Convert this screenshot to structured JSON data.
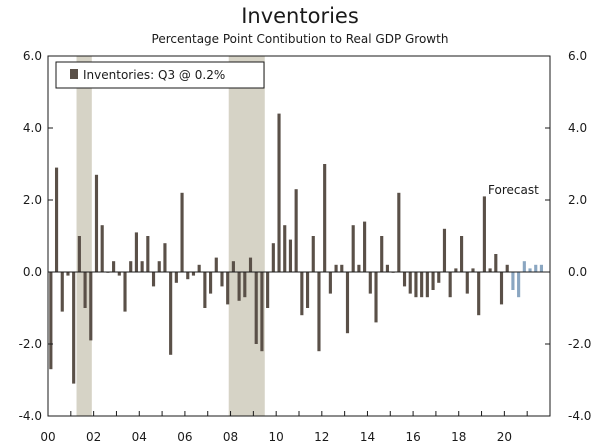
{
  "chart_data": {
    "type": "bar",
    "title": "Inventories",
    "subtitle": "Percentage Point Contibution to Real GDP Growth",
    "ylim": [
      -4.0,
      6.0
    ],
    "yticks": [
      -4.0,
      -2.0,
      0.0,
      2.0,
      4.0,
      6.0
    ],
    "ytick_labels": [
      "-4.0",
      "-2.0",
      "0.0",
      "2.0",
      "4.0",
      "6.0"
    ],
    "x_start_year": 2000,
    "x_end_year": 2022,
    "xtick_years": [
      2000,
      2002,
      2004,
      2006,
      2008,
      2010,
      2012,
      2014,
      2016,
      2018,
      2020
    ],
    "xtick_labels": [
      "00",
      "02",
      "04",
      "06",
      "08",
      "10",
      "12",
      "14",
      "16",
      "18",
      "20"
    ],
    "legend": {
      "label": "Inventories: Q3 @ 0.2%",
      "color": "#5a5048",
      "position": "top-left"
    },
    "annotation": "Forecast",
    "recessions": [
      {
        "start": 2001.25,
        "end": 2001.92
      },
      {
        "start": 2007.92,
        "end": 2009.5
      }
    ],
    "colors": {
      "actual": "#5a5048",
      "forecast": "#8aa6c1",
      "recession": "#d6d3c6",
      "axis": "#1a1a1a"
    },
    "series": [
      {
        "name": "Actual",
        "start": 2000.0,
        "values": [
          -2.7,
          2.9,
          -1.1,
          -0.1,
          -3.1,
          1.0,
          -1.0,
          -1.9,
          2.7,
          1.3,
          0.0,
          0.3,
          -0.1,
          -1.1,
          0.3,
          1.1,
          0.3,
          1.0,
          -0.4,
          0.3,
          0.8,
          -2.3,
          -0.3,
          2.2,
          -0.2,
          -0.1,
          0.2,
          -1.0,
          -0.6,
          0.4,
          -0.4,
          -0.9,
          0.3,
          -0.8,
          -0.7,
          0.4,
          -2.0,
          -2.2,
          -1.0,
          0.8,
          4.4,
          1.3,
          0.9,
          2.3,
          -1.2,
          -1.0,
          1.0,
          -2.2,
          3.0,
          -0.6,
          0.2,
          0.2,
          -1.7,
          1.3,
          0.2,
          1.4,
          -0.6,
          -1.4,
          1.0,
          0.2,
          0.0,
          2.2,
          -0.4,
          -0.6,
          -0.7,
          -0.7,
          -0.7,
          -0.5,
          -0.3,
          1.2,
          -0.7,
          0.1,
          1.0,
          -0.6,
          0.1,
          -1.2,
          2.1,
          0.1,
          0.5,
          -0.9,
          0.2
        ]
      },
      {
        "name": "Forecast",
        "start": 2020.25,
        "values": [
          -0.5,
          -0.7,
          0.3,
          0.1,
          0.2,
          0.2
        ]
      }
    ]
  }
}
